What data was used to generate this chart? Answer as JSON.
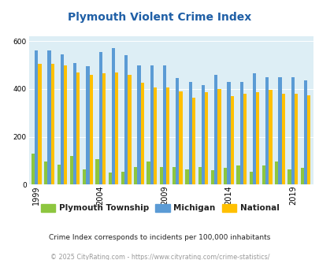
{
  "title": "Plymouth Violent Crime Index",
  "years": [
    1999,
    2000,
    2001,
    2002,
    2003,
    2004,
    2005,
    2006,
    2007,
    2008,
    2009,
    2010,
    2011,
    2012,
    2013,
    2014,
    2015,
    2016,
    2017,
    2018,
    2019,
    2020
  ],
  "plymouth": [
    130,
    95,
    85,
    120,
    65,
    105,
    50,
    55,
    75,
    95,
    75,
    75,
    65,
    75,
    60,
    70,
    80,
    55,
    80,
    95,
    65,
    70
  ],
  "michigan": [
    560,
    560,
    545,
    510,
    495,
    555,
    570,
    540,
    500,
    500,
    500,
    445,
    430,
    415,
    460,
    430,
    430,
    465,
    450,
    450,
    450,
    435
  ],
  "national": [
    505,
    505,
    500,
    470,
    460,
    465,
    470,
    460,
    425,
    405,
    405,
    390,
    365,
    385,
    400,
    370,
    380,
    385,
    395,
    380,
    380,
    375
  ],
  "plymouth_color": "#8dc63f",
  "michigan_color": "#5b9bd5",
  "national_color": "#ffc000",
  "plot_bg": "#ddeef5",
  "ylim": [
    0,
    620
  ],
  "yticks": [
    0,
    200,
    400,
    600
  ],
  "tick_years": [
    1999,
    2004,
    2009,
    2014,
    2019
  ],
  "footnote1": "Crime Index corresponds to incidents per 100,000 inhabitants",
  "footnote2": "© 2025 CityRating.com - https://www.cityrating.com/crime-statistics/",
  "legend_labels": [
    "Plymouth Township",
    "Michigan",
    "National"
  ]
}
